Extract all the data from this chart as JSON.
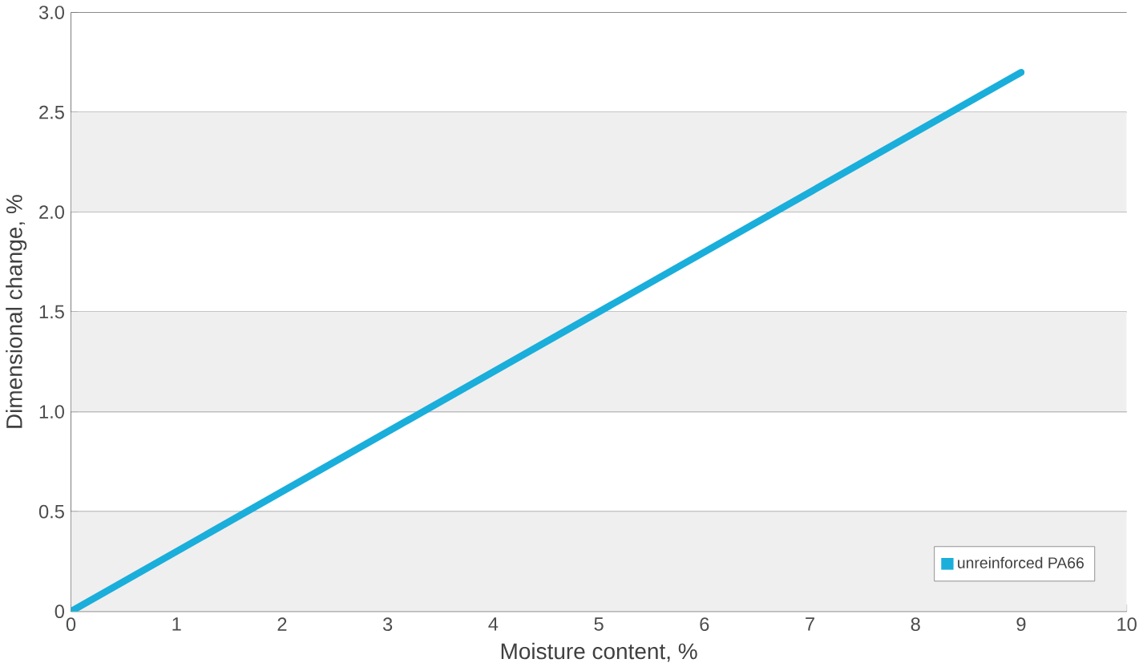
{
  "chart_data": {
    "type": "line",
    "xlabel": "Moisture content, %",
    "ylabel": "Dimensional change, %",
    "series": [
      {
        "name": "unreinforced PA66",
        "color": "#1aaedb",
        "x": [
          0,
          9
        ],
        "values": [
          0,
          2.7
        ]
      }
    ],
    "xlim": [
      0,
      10
    ],
    "xticks": [
      0,
      1,
      2,
      3,
      4,
      5,
      6,
      7,
      8,
      9,
      10
    ],
    "ylim": [
      0,
      3
    ],
    "yticks": [
      0,
      0.5,
      {
        "value": 1,
        "label": "1.0"
      },
      1.5,
      {
        "value": 2,
        "label": "2.0"
      },
      2.5,
      {
        "value": 3,
        "label": "3.0"
      }
    ],
    "bands": [
      {
        "axis": "y",
        "from": 0,
        "to": 0.5,
        "color": "#efefef"
      },
      {
        "axis": "y",
        "from": 1,
        "to": 1.5,
        "color": "#efefef"
      },
      {
        "axis": "y",
        "from": 2,
        "to": 2.5,
        "color": "#efefef"
      }
    ],
    "grid": "y",
    "legend": "bottom right",
    "marker": "none",
    "line_style": "solid"
  }
}
